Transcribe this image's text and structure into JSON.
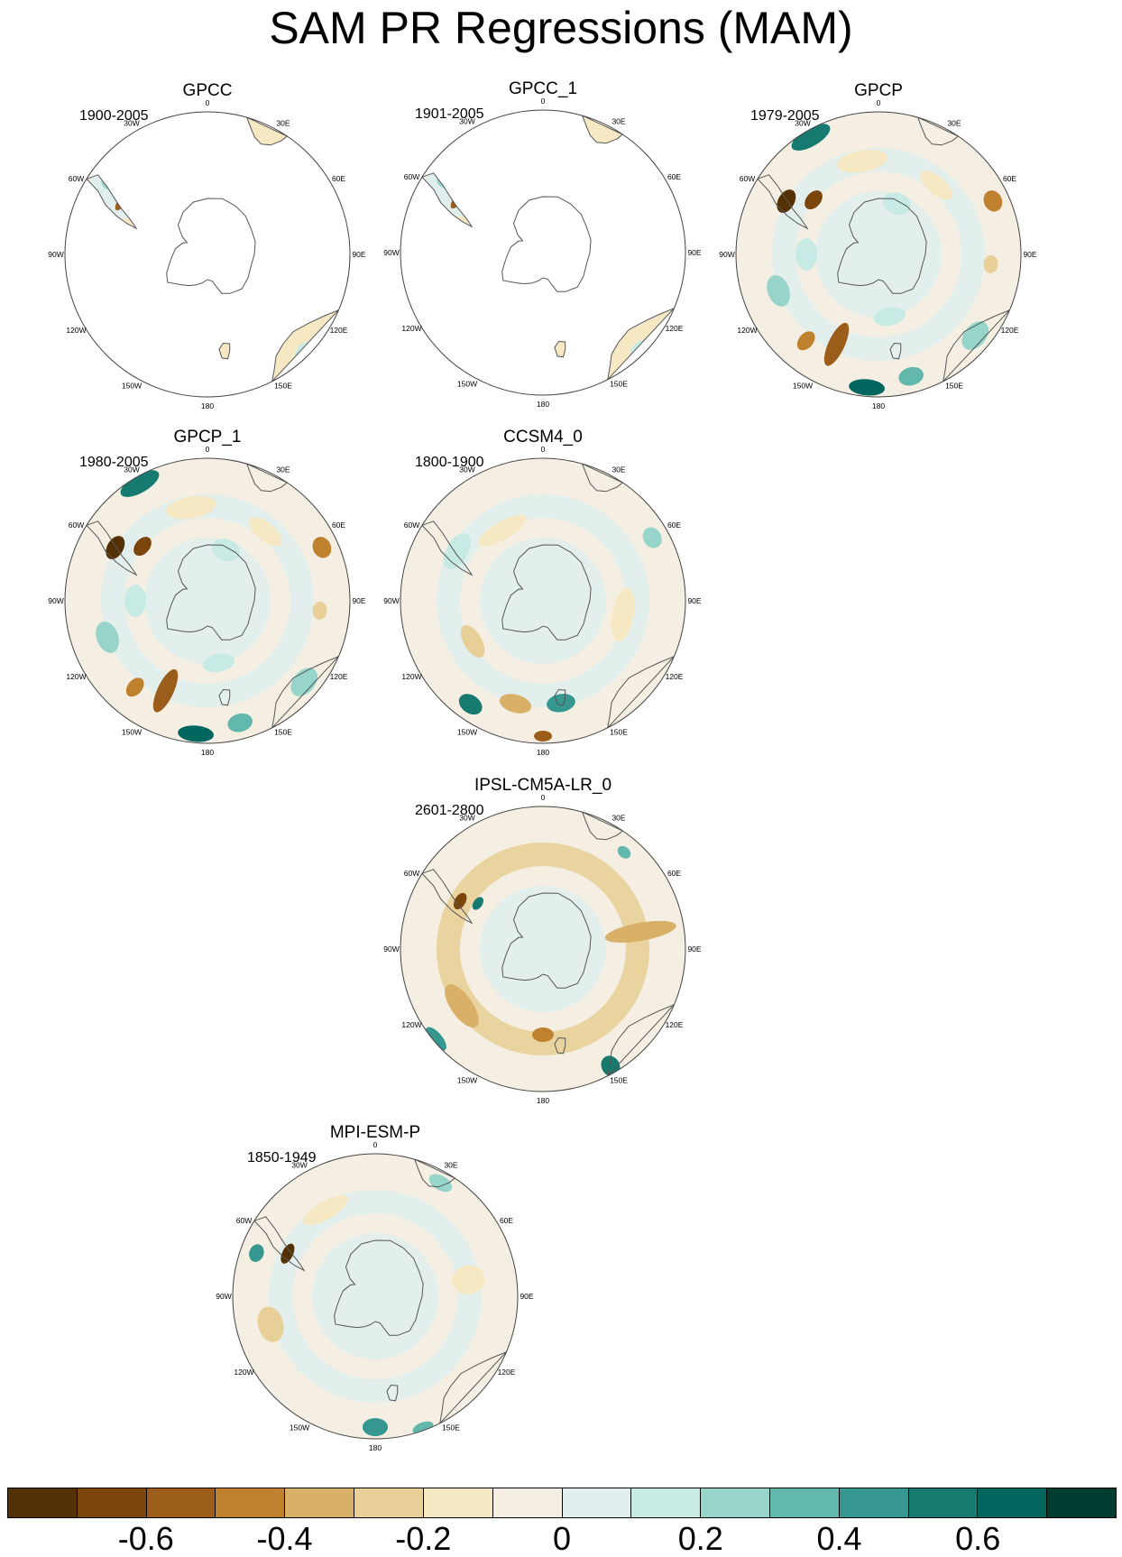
{
  "title": "SAM PR Regressions (MAM)",
  "longitude_labels": [
    "0",
    "30E",
    "60E",
    "90E",
    "120E",
    "150E",
    "180",
    "150W",
    "120W",
    "90W",
    "60W",
    "30W"
  ],
  "panels": [
    {
      "name": "GPCC",
      "period": "1900-2005",
      "coverage": "land"
    },
    {
      "name": "GPCC_1",
      "period": "1901-2005",
      "coverage": "land"
    },
    {
      "name": "GPCP",
      "period": "1979-2005",
      "coverage": "full"
    },
    {
      "name": "GPCP_1",
      "period": "1980-2005",
      "coverage": "full"
    },
    {
      "name": "CCSM4_0",
      "period": "1800-1900",
      "coverage": "full"
    },
    {
      "name": "IPSL-CM5A-LR_0",
      "period": "2601-2800",
      "coverage": "full"
    },
    {
      "name": "MPI-ESM-P",
      "period": "1850-1949",
      "coverage": "full"
    }
  ],
  "colorbar": {
    "colors": [
      "#543005",
      "#7b450c",
      "#9c5d1a",
      "#bf812d",
      "#d9b068",
      "#e8cf98",
      "#f6e8c3",
      "#f4efe2",
      "#e1eeee",
      "#c7eae5",
      "#97d5cb",
      "#62b8ad",
      "#35978f",
      "#167a71",
      "#01665e",
      "#003c30"
    ],
    "labels": [
      "-0.6",
      "-0.4",
      "-0.2",
      "0",
      "0.2",
      "0.4",
      "0.6"
    ],
    "label_values": [
      -0.6,
      -0.4,
      -0.2,
      0,
      0.2,
      0.4,
      0.6
    ],
    "min": -0.8,
    "max": 0.8
  }
}
